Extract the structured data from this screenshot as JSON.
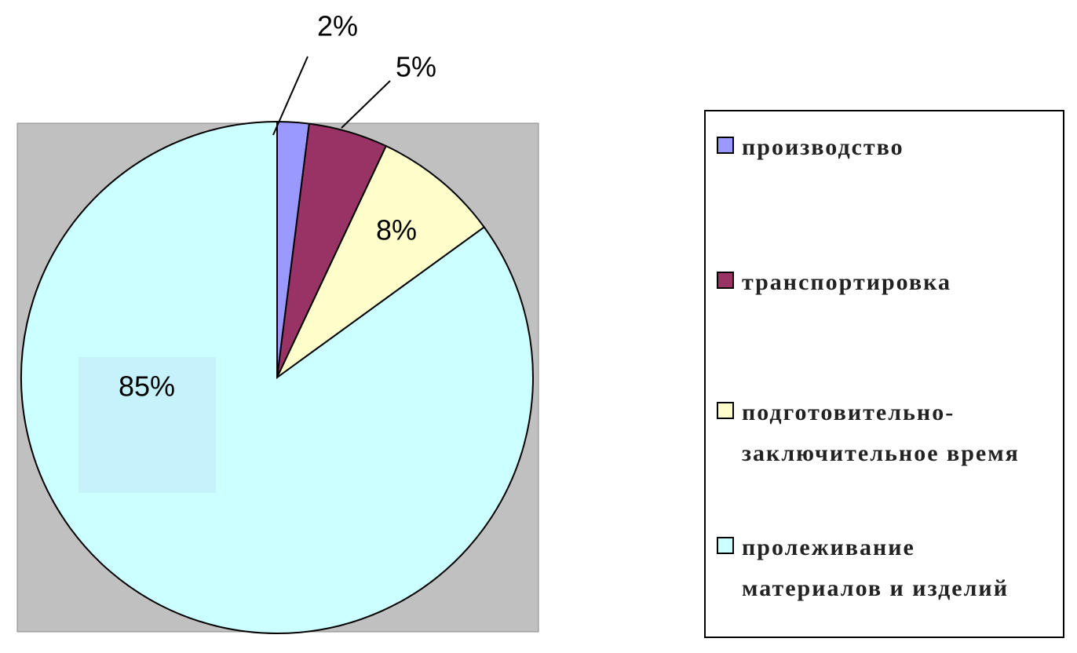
{
  "chart_data": {
    "type": "pie",
    "categories": [
      "производство",
      "транспортировка",
      "подготовительно-заключительное время",
      "пролеживание материалов и изделий"
    ],
    "values": [
      2,
      5,
      8,
      85
    ],
    "value_labels": [
      "2%",
      "5%",
      "8%",
      "85%"
    ],
    "colors": [
      "#9999ff",
      "#993366",
      "#ffffcc",
      "#ccffff"
    ]
  }
}
